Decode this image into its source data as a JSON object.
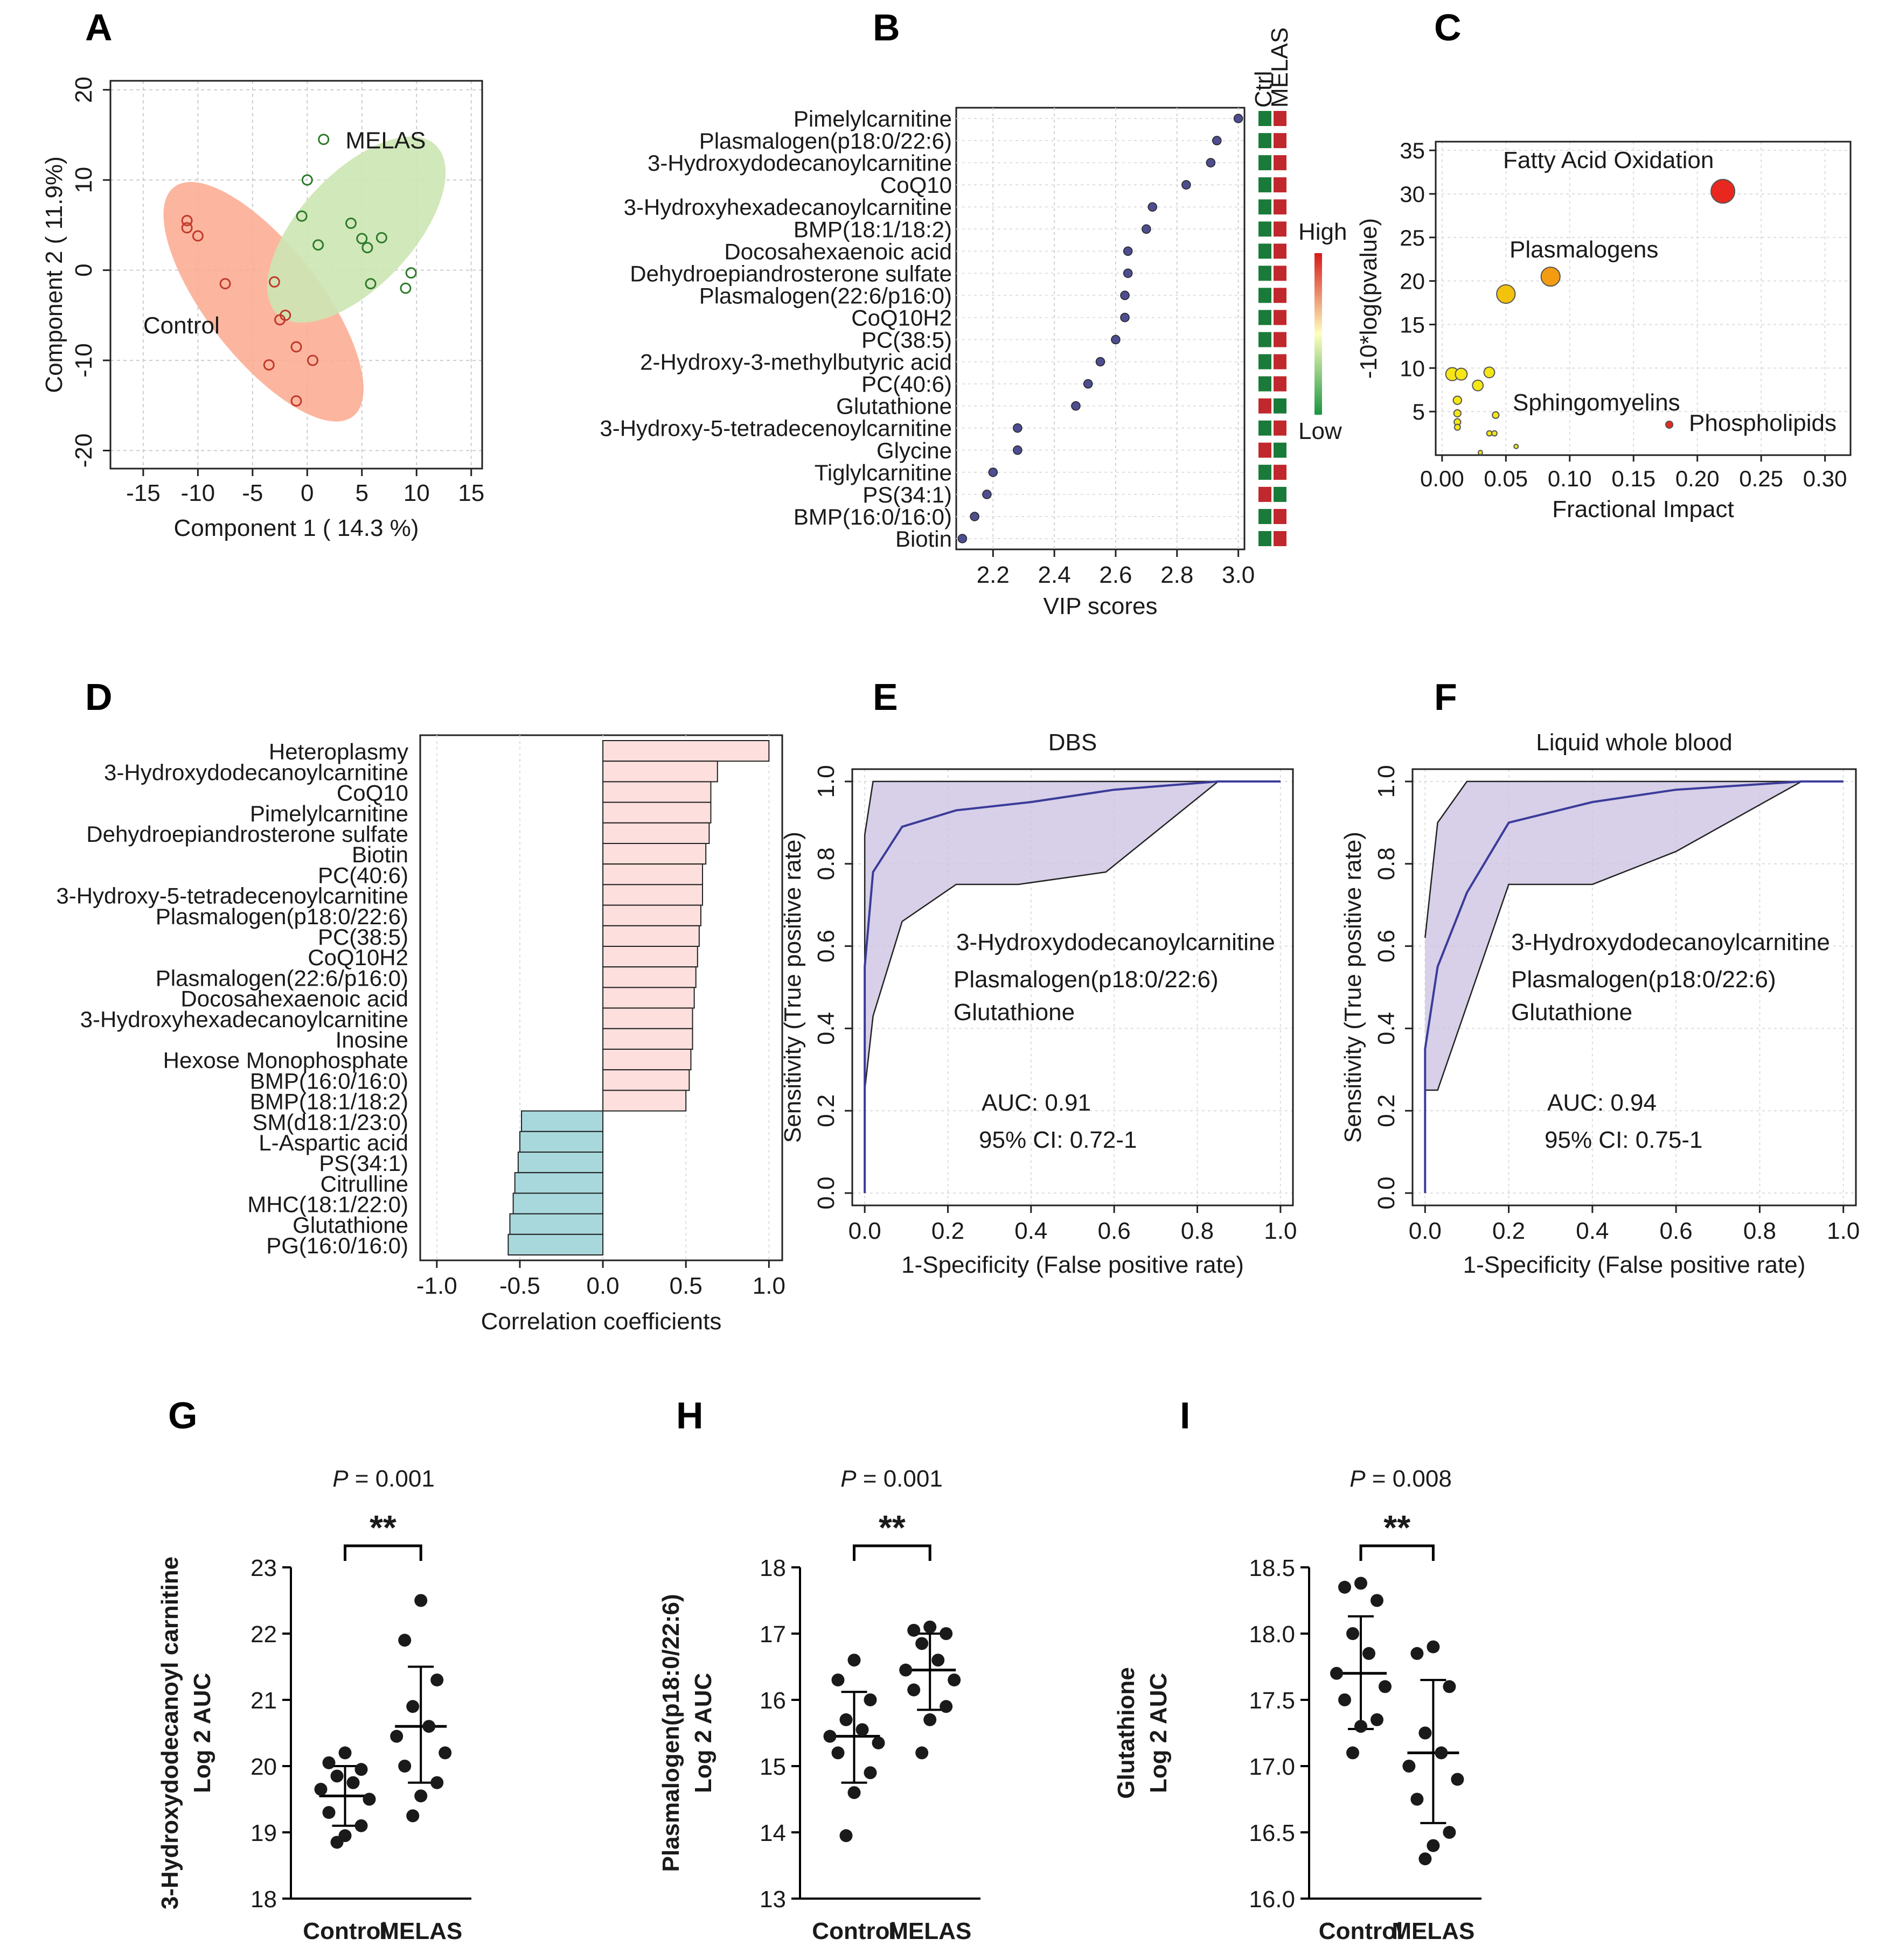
{
  "chart_data": [
    {
      "panel": "A",
      "type": "scatter",
      "xlabel": "Component 1 ( 14.3 %)",
      "ylabel": "Component 2 ( 11.9%)",
      "xlim": [
        -18,
        16
      ],
      "ylim": [
        -22,
        21
      ],
      "xticks": [
        "-15",
        "-10",
        "-5",
        "0",
        "5",
        "10",
        "15"
      ],
      "yticks": [
        "-20",
        "-10",
        "0",
        "10",
        "20"
      ],
      "grid": true,
      "series": [
        {
          "name": "Control",
          "color": "#d6604d",
          "ellipse_fill": "#fba98e",
          "points": [
            [
              -11,
              5.5
            ],
            [
              -11,
              4.7
            ],
            [
              -10,
              3.8
            ],
            [
              -7.5,
              -1.5
            ],
            [
              -3,
              -1.3
            ],
            [
              -2.5,
              -5.5
            ],
            [
              -2,
              -5
            ],
            [
              -3.5,
              -10.5
            ],
            [
              -1,
              -8.5
            ],
            [
              0.5,
              -10
            ],
            [
              -1,
              -14.5
            ]
          ]
        },
        {
          "name": "MELAS",
          "color": "#4daf4a",
          "ellipse_fill": "#cce6b3",
          "points": [
            [
              1.5,
              14.5
            ],
            [
              0,
              10
            ],
            [
              -0.5,
              6
            ],
            [
              4,
              5.2
            ],
            [
              6.8,
              3.6
            ],
            [
              5,
              3.5
            ],
            [
              5.5,
              2.5
            ],
            [
              1,
              2.8
            ],
            [
              5.8,
              -1.5
            ],
            [
              9.5,
              -0.3
            ],
            [
              9,
              -2
            ]
          ]
        }
      ]
    },
    {
      "panel": "B",
      "type": "scatter",
      "xlabel": "VIP scores",
      "xlim": [
        2.08,
        3.02
      ],
      "xticks": [
        "2.2",
        "2.4",
        "2.6",
        "2.8",
        "3.0"
      ],
      "heatmap_columns": [
        "Ctrl",
        "MELAS"
      ],
      "legend_high": "High",
      "legend_low": "Low",
      "items": [
        {
          "name": "Pimelylcarnitine",
          "vip": 3.0,
          "ctrl": "low",
          "melas": "high"
        },
        {
          "name": "Plasmalogen(p18:0/22:6)",
          "vip": 2.93,
          "ctrl": "low",
          "melas": "high"
        },
        {
          "name": "3-Hydroxydodecanoylcarnitine",
          "vip": 2.91,
          "ctrl": "low",
          "melas": "high"
        },
        {
          "name": "CoQ10",
          "vip": 2.83,
          "ctrl": "low",
          "melas": "high"
        },
        {
          "name": "3-Hydroxyhexadecanoylcarnitine",
          "vip": 2.72,
          "ctrl": "low",
          "melas": "high"
        },
        {
          "name": "BMP(18:1/18:2)",
          "vip": 2.7,
          "ctrl": "low",
          "melas": "high"
        },
        {
          "name": "Docosahexaenoic acid",
          "vip": 2.64,
          "ctrl": "low",
          "melas": "high"
        },
        {
          "name": "Dehydroepiandrosterone sulfate",
          "vip": 2.64,
          "ctrl": "low",
          "melas": "high"
        },
        {
          "name": "Plasmalogen(22:6/p16:0)",
          "vip": 2.63,
          "ctrl": "low",
          "melas": "high"
        },
        {
          "name": "CoQ10H2",
          "vip": 2.63,
          "ctrl": "low",
          "melas": "high"
        },
        {
          "name": "PC(38:5)",
          "vip": 2.6,
          "ctrl": "low",
          "melas": "high"
        },
        {
          "name": "2-Hydroxy-3-methylbutyric acid",
          "vip": 2.55,
          "ctrl": "low",
          "melas": "high"
        },
        {
          "name": "PC(40:6)",
          "vip": 2.51,
          "ctrl": "low",
          "melas": "high"
        },
        {
          "name": "Glutathione",
          "vip": 2.47,
          "ctrl": "high",
          "melas": "low"
        },
        {
          "name": "3-Hydroxy-5-tetradecenoylcarnitine",
          "vip": 2.28,
          "ctrl": "low",
          "melas": "high"
        },
        {
          "name": "Glycine",
          "vip": 2.28,
          "ctrl": "high",
          "melas": "low"
        },
        {
          "name": "Tiglylcarnitine",
          "vip": 2.2,
          "ctrl": "low",
          "melas": "high"
        },
        {
          "name": "PS(34:1)",
          "vip": 2.18,
          "ctrl": "high",
          "melas": "low"
        },
        {
          "name": "BMP(16:0/16:0)",
          "vip": 2.14,
          "ctrl": "low",
          "melas": "high"
        },
        {
          "name": "Biotin",
          "vip": 2.1,
          "ctrl": "low",
          "melas": "high"
        }
      ]
    },
    {
      "panel": "C",
      "type": "scatter",
      "xlabel": "Fractional Impact",
      "ylabel": "-10*log(pvalue)",
      "xlim": [
        -0.005,
        0.32
      ],
      "ylim": [
        0,
        36
      ],
      "xticks": [
        "0.00",
        "0.05",
        "0.10",
        "0.15",
        "0.20",
        "0.25",
        "0.30"
      ],
      "yticks": [
        "5",
        "10",
        "15",
        "20",
        "25",
        "30",
        "35"
      ],
      "annotations": [
        "Fatty Acid Oxidation",
        "Plasmalogens",
        "Sphingomyelins",
        "Phospholipids"
      ],
      "points": [
        {
          "x": 0.22,
          "y": 30.3,
          "size": 1.0
        },
        {
          "x": 0.085,
          "y": 20.5,
          "size": 0.8
        },
        {
          "x": 0.05,
          "y": 18.5,
          "size": 0.78
        },
        {
          "x": 0.008,
          "y": 9.3,
          "size": 0.55
        },
        {
          "x": 0.015,
          "y": 9.3,
          "size": 0.5
        },
        {
          "x": 0.037,
          "y": 9.5,
          "size": 0.45
        },
        {
          "x": 0.028,
          "y": 8.0,
          "size": 0.45
        },
        {
          "x": 0.012,
          "y": 6.3,
          "size": 0.35
        },
        {
          "x": 0.012,
          "y": 4.8,
          "size": 0.3
        },
        {
          "x": 0.012,
          "y": 3.8,
          "size": 0.28
        },
        {
          "x": 0.012,
          "y": 3.2,
          "size": 0.25
        },
        {
          "x": 0.042,
          "y": 4.6,
          "size": 0.28
        },
        {
          "x": 0.037,
          "y": 2.5,
          "size": 0.22
        },
        {
          "x": 0.041,
          "y": 2.5,
          "size": 0.22
        },
        {
          "x": 0.058,
          "y": 1.0,
          "size": 0.15
        },
        {
          "x": 0.03,
          "y": 0.3,
          "size": 0.12
        },
        {
          "x": 0.178,
          "y": 3.5,
          "size": 0.3
        }
      ]
    },
    {
      "panel": "D",
      "type": "bar",
      "xlabel": "Correlation coefficients",
      "xlim": [
        -1.1,
        1.08
      ],
      "xticks": [
        "-1.0",
        "-0.5",
        "0.0",
        "0.5",
        "1.0"
      ],
      "categories": [
        "Heteroplasmy",
        "3-Hydroxydodecanoylcarnitine",
        "CoQ10",
        "Pimelylcarnitine",
        "Dehydroepiandrosterone sulfate",
        "Biotin",
        "PC(40:6)",
        "3-Hydroxy-5-tetradecenoylcarnitine",
        "Plasmalogen(p18:0/22:6)",
        "PC(38:5)",
        "CoQ10H2",
        "Plasmalogen(22:6/p16:0)",
        "Docosahexaenoic acid",
        "3-Hydroxyhexadecanoylcarnitine",
        "Inosine",
        "Hexose Monophosphate",
        "BMP(16:0/16:0)",
        "BMP(18:1/18:2)",
        "SM(d18:1/23:0)",
        "L-Aspartic acid",
        "PS(34:1)",
        "Citrulline",
        "MHC(18:1/22:0)",
        "Glutathione",
        "PG(16:0/16:0)"
      ],
      "values": [
        1.0,
        0.69,
        0.65,
        0.65,
        0.64,
        0.62,
        0.6,
        0.6,
        0.59,
        0.58,
        0.57,
        0.56,
        0.55,
        0.54,
        0.54,
        0.53,
        0.52,
        0.5,
        -0.49,
        -0.5,
        -0.51,
        -0.53,
        -0.54,
        -0.56,
        -0.57
      ],
      "positive_color": "#fde0dd",
      "negative_color": "#a8d8dc"
    },
    {
      "panel": "E",
      "type": "line",
      "title": "DBS",
      "xlabel": "1-Specificity (False positive rate)",
      "ylabel": "Sensitivity (True positive rate)",
      "xlim": [
        -0.03,
        1.03
      ],
      "ylim": [
        -0.03,
        1.03
      ],
      "xticks": [
        "0.0",
        "0.2",
        "0.4",
        "0.6",
        "0.8",
        "1.0"
      ],
      "yticks": [
        "0.0",
        "0.2",
        "0.4",
        "0.6",
        "0.8",
        "1.0"
      ],
      "features": [
        "3-Hydroxydodecanoylcarnitine",
        "Plasmalogen(p18:0/22:6)",
        "Glutathione"
      ],
      "auc_text": "AUC: 0.91",
      "ci_text": "95% CI: 0.72-1",
      "roc": [
        [
          0,
          0
        ],
        [
          0,
          0.55
        ],
        [
          0.02,
          0.78
        ],
        [
          0.09,
          0.89
        ],
        [
          0.22,
          0.93
        ],
        [
          0.4,
          0.95
        ],
        [
          0.6,
          0.98
        ],
        [
          0.85,
          1.0
        ],
        [
          1.0,
          1.0
        ]
      ],
      "ci_upper": [
        [
          0,
          0.2
        ],
        [
          0,
          0.87
        ],
        [
          0.02,
          1.0
        ],
        [
          1.0,
          1.0
        ]
      ],
      "ci_lower": [
        [
          0,
          0
        ],
        [
          0,
          0.25
        ],
        [
          0.02,
          0.43
        ],
        [
          0.09,
          0.66
        ],
        [
          0.22,
          0.75
        ],
        [
          0.37,
          0.75
        ],
        [
          0.58,
          0.78
        ],
        [
          0.85,
          1.0
        ]
      ]
    },
    {
      "panel": "F",
      "type": "line",
      "title": "Liquid whole blood",
      "xlabel": "1-Specificity (False positive rate)",
      "ylabel": "Sensitivity (True positive rate)",
      "xlim": [
        -0.03,
        1.03
      ],
      "ylim": [
        -0.03,
        1.03
      ],
      "xticks": [
        "0.0",
        "0.2",
        "0.4",
        "0.6",
        "0.8",
        "1.0"
      ],
      "yticks": [
        "0.0",
        "0.2",
        "0.4",
        "0.6",
        "0.8",
        "1.0"
      ],
      "features": [
        "3-Hydroxydodecanoylcarnitine",
        "Plasmalogen(p18:0/22:6)",
        "Glutathione"
      ],
      "auc_text": "AUC: 0.94",
      "ci_text": "95% CI: 0.75-1",
      "roc": [
        [
          0,
          0
        ],
        [
          0,
          0.35
        ],
        [
          0.03,
          0.55
        ],
        [
          0.1,
          0.73
        ],
        [
          0.2,
          0.9
        ],
        [
          0.4,
          0.95
        ],
        [
          0.6,
          0.98
        ],
        [
          0.9,
          1.0
        ],
        [
          1.0,
          1.0
        ]
      ],
      "ci_upper": [
        [
          0,
          0.62
        ],
        [
          0.03,
          0.9
        ],
        [
          0.1,
          1.0
        ],
        [
          1.0,
          1.0
        ]
      ],
      "ci_lower": [
        [
          0,
          0.25
        ],
        [
          0.03,
          0.25
        ],
        [
          0.2,
          0.75
        ],
        [
          0.4,
          0.75
        ],
        [
          0.6,
          0.83
        ],
        [
          0.9,
          1.0
        ]
      ]
    },
    {
      "panel": "G",
      "type": "scatter",
      "ylabel_1": "3-Hydroxydodecanoyl carnitine",
      "ylabel_2": "Log 2 AUC",
      "categories": [
        "Control",
        "MELAS"
      ],
      "ylim": [
        18,
        23
      ],
      "yticks": [
        "18",
        "19",
        "20",
        "21",
        "22",
        "23"
      ],
      "p_value": "= 0.001",
      "sig": "**",
      "groups": [
        {
          "name": "Control",
          "mean": 19.55,
          "sd_low": 19.1,
          "sd_high": 20.0,
          "values": [
            20.2,
            20.05,
            19.95,
            19.85,
            19.75,
            19.65,
            19.5,
            19.3,
            19.1,
            18.95,
            18.85
          ]
        },
        {
          "name": "MELAS",
          "mean": 20.6,
          "sd_low": 19.75,
          "sd_high": 21.5,
          "values": [
            22.5,
            21.9,
            21.3,
            20.9,
            20.6,
            20.45,
            20.2,
            20.0,
            19.75,
            19.55,
            19.25
          ]
        }
      ]
    },
    {
      "panel": "H",
      "type": "scatter",
      "ylabel_1": "Plasmalogen(p18:0/22:6)",
      "ylabel_2": "Log 2 AUC",
      "categories": [
        "Control",
        "MELAS"
      ],
      "ylim": [
        13,
        18
      ],
      "yticks": [
        "13",
        "14",
        "15",
        "16",
        "17",
        "18"
      ],
      "p_value": "= 0.001",
      "sig": "**",
      "groups": [
        {
          "name": "Control",
          "mean": 15.45,
          "sd_low": 14.75,
          "sd_high": 16.12,
          "values": [
            16.6,
            16.3,
            16.0,
            15.7,
            15.55,
            15.45,
            15.35,
            15.2,
            14.9,
            14.6,
            13.95
          ]
        },
        {
          "name": "MELAS",
          "mean": 16.45,
          "sd_low": 15.85,
          "sd_high": 17.0,
          "values": [
            17.1,
            17.05,
            17.0,
            16.85,
            16.6,
            16.45,
            16.3,
            16.15,
            15.9,
            15.7,
            15.2
          ]
        }
      ]
    },
    {
      "panel": "I",
      "type": "scatter",
      "ylabel_1": "Glutathione",
      "ylabel_2": "Log 2 AUC",
      "categories": [
        "Control",
        "MELAS"
      ],
      "ylim": [
        16.0,
        18.5
      ],
      "yticks": [
        "16.0",
        "16.5",
        "17.0",
        "17.5",
        "18.0",
        "18.5"
      ],
      "p_value": "= 0.008",
      "sig": "**",
      "groups": [
        {
          "name": "Control",
          "mean": 17.7,
          "sd_low": 17.28,
          "sd_high": 18.13,
          "values": [
            18.38,
            18.35,
            18.25,
            18.0,
            17.85,
            17.7,
            17.6,
            17.5,
            17.35,
            17.3,
            17.1
          ]
        },
        {
          "name": "MELAS",
          "mean": 17.1,
          "sd_low": 16.57,
          "sd_high": 17.65,
          "values": [
            17.9,
            17.85,
            17.6,
            17.25,
            17.1,
            17.0,
            16.9,
            16.75,
            16.5,
            16.4,
            16.3
          ]
        }
      ]
    }
  ],
  "panel_letters": [
    "A",
    "B",
    "C",
    "D",
    "E",
    "F",
    "G",
    "H",
    "I"
  ],
  "p_symbol": "P"
}
